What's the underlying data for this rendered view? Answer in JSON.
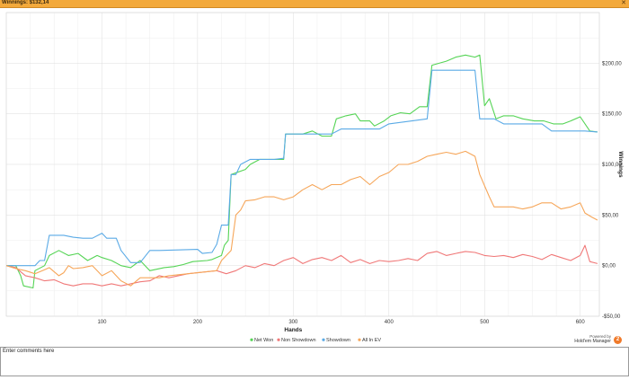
{
  "window": {
    "title": "Winnings: $132,14"
  },
  "chart_data": {
    "type": "line",
    "xlabel": "Hands",
    "ylabel": "Winnings",
    "xlim": [
      0,
      620
    ],
    "ylim": [
      -50,
      250
    ],
    "x_ticks": [
      100,
      200,
      300,
      400,
      500,
      600
    ],
    "x_tick_labels": [
      "100",
      "200",
      "300",
      "400",
      "500",
      "600"
    ],
    "y_ticks": [
      -50,
      0,
      50,
      100,
      150,
      200
    ],
    "y_tick_labels": [
      "-$50,00",
      "$0,00",
      "$50,00",
      "$100,00",
      "$150,00",
      "$200,00"
    ],
    "grid": true,
    "legend_position": "bottom-center",
    "series": [
      {
        "name": "Net Won",
        "color": "#55d455",
        "points": [
          [
            0,
            0
          ],
          [
            10,
            0
          ],
          [
            15,
            -10
          ],
          [
            18,
            -20
          ],
          [
            28,
            -22
          ],
          [
            30,
            -5
          ],
          [
            40,
            0
          ],
          [
            45,
            10
          ],
          [
            55,
            15
          ],
          [
            65,
            10
          ],
          [
            75,
            12
          ],
          [
            85,
            5
          ],
          [
            95,
            10
          ],
          [
            100,
            8
          ],
          [
            110,
            5
          ],
          [
            120,
            0
          ],
          [
            130,
            -2
          ],
          [
            140,
            5
          ],
          [
            150,
            -5
          ],
          [
            165,
            -2
          ],
          [
            175,
            -1
          ],
          [
            185,
            1
          ],
          [
            195,
            4
          ],
          [
            210,
            5
          ],
          [
            215,
            6
          ],
          [
            225,
            10
          ],
          [
            228,
            20
          ],
          [
            232,
            25
          ],
          [
            235,
            90
          ],
          [
            250,
            95
          ],
          [
            255,
            100
          ],
          [
            265,
            105
          ],
          [
            290,
            105
          ],
          [
            292,
            130
          ],
          [
            310,
            130
          ],
          [
            320,
            133
          ],
          [
            330,
            128
          ],
          [
            340,
            128
          ],
          [
            345,
            145
          ],
          [
            355,
            148
          ],
          [
            365,
            150
          ],
          [
            370,
            143
          ],
          [
            380,
            143
          ],
          [
            385,
            138
          ],
          [
            395,
            143
          ],
          [
            402,
            148
          ],
          [
            412,
            151
          ],
          [
            422,
            150
          ],
          [
            432,
            157
          ],
          [
            440,
            157
          ],
          [
            445,
            198
          ],
          [
            460,
            202
          ],
          [
            470,
            206
          ],
          [
            480,
            208
          ],
          [
            490,
            206
          ],
          [
            495,
            208
          ],
          [
            500,
            158
          ],
          [
            505,
            165
          ],
          [
            512,
            145
          ],
          [
            520,
            148
          ],
          [
            530,
            148
          ],
          [
            540,
            145
          ],
          [
            552,
            143
          ],
          [
            562,
            143
          ],
          [
            572,
            140
          ],
          [
            582,
            140
          ],
          [
            590,
            143
          ],
          [
            600,
            147
          ],
          [
            610,
            133
          ],
          [
            618,
            132
          ]
        ]
      },
      {
        "name": "Non Showdown",
        "color": "#f07878",
        "points": [
          [
            0,
            0
          ],
          [
            10,
            -2
          ],
          [
            20,
            -10
          ],
          [
            30,
            -12
          ],
          [
            40,
            -15
          ],
          [
            50,
            -14
          ],
          [
            60,
            -18
          ],
          [
            70,
            -20
          ],
          [
            80,
            -18
          ],
          [
            90,
            -18
          ],
          [
            100,
            -20
          ],
          [
            110,
            -18
          ],
          [
            120,
            -20
          ],
          [
            130,
            -18
          ],
          [
            140,
            -16
          ],
          [
            150,
            -15
          ],
          [
            160,
            -10
          ],
          [
            170,
            -12
          ],
          [
            180,
            -10
          ],
          [
            190,
            -8
          ],
          [
            200,
            -7
          ],
          [
            210,
            -6
          ],
          [
            220,
            -5
          ],
          [
            230,
            -8
          ],
          [
            240,
            -5
          ],
          [
            250,
            0
          ],
          [
            260,
            -2
          ],
          [
            270,
            2
          ],
          [
            280,
            0
          ],
          [
            290,
            5
          ],
          [
            300,
            8
          ],
          [
            310,
            2
          ],
          [
            320,
            6
          ],
          [
            330,
            8
          ],
          [
            340,
            5
          ],
          [
            350,
            10
          ],
          [
            360,
            3
          ],
          [
            370,
            6
          ],
          [
            380,
            2
          ],
          [
            390,
            5
          ],
          [
            400,
            4
          ],
          [
            410,
            5
          ],
          [
            420,
            7
          ],
          [
            430,
            5
          ],
          [
            440,
            12
          ],
          [
            450,
            14
          ],
          [
            460,
            10
          ],
          [
            470,
            12
          ],
          [
            480,
            14
          ],
          [
            490,
            13
          ],
          [
            500,
            10
          ],
          [
            510,
            9
          ],
          [
            520,
            10
          ],
          [
            530,
            8
          ],
          [
            540,
            11
          ],
          [
            550,
            9
          ],
          [
            560,
            6
          ],
          [
            570,
            11
          ],
          [
            580,
            8
          ],
          [
            590,
            5
          ],
          [
            600,
            10
          ],
          [
            605,
            20
          ],
          [
            610,
            4
          ],
          [
            618,
            2
          ]
        ]
      },
      {
        "name": "Showdown",
        "color": "#5aaae6",
        "points": [
          [
            0,
            0
          ],
          [
            30,
            0
          ],
          [
            35,
            5
          ],
          [
            40,
            5
          ],
          [
            45,
            30
          ],
          [
            60,
            30
          ],
          [
            70,
            28
          ],
          [
            80,
            27
          ],
          [
            90,
            27
          ],
          [
            100,
            32
          ],
          [
            105,
            27
          ],
          [
            115,
            27
          ],
          [
            120,
            15
          ],
          [
            130,
            3
          ],
          [
            140,
            3
          ],
          [
            150,
            15
          ],
          [
            160,
            15
          ],
          [
            200,
            16
          ],
          [
            205,
            12
          ],
          [
            215,
            13
          ],
          [
            220,
            21
          ],
          [
            225,
            40
          ],
          [
            232,
            40
          ],
          [
            235,
            90
          ],
          [
            240,
            90
          ],
          [
            245,
            100
          ],
          [
            255,
            105
          ],
          [
            280,
            105
          ],
          [
            290,
            106
          ],
          [
            292,
            130
          ],
          [
            310,
            130
          ],
          [
            340,
            130
          ],
          [
            350,
            135
          ],
          [
            390,
            135
          ],
          [
            400,
            140
          ],
          [
            440,
            145
          ],
          [
            445,
            193
          ],
          [
            465,
            193
          ],
          [
            490,
            193
          ],
          [
            495,
            145
          ],
          [
            510,
            145
          ],
          [
            520,
            140
          ],
          [
            540,
            140
          ],
          [
            560,
            140
          ],
          [
            570,
            133
          ],
          [
            590,
            133
          ],
          [
            605,
            133
          ],
          [
            618,
            132
          ]
        ]
      },
      {
        "name": "All In EV",
        "color": "#f6a659",
        "points": [
          [
            0,
            0
          ],
          [
            10,
            -3
          ],
          [
            20,
            -5
          ],
          [
            30,
            -8
          ],
          [
            40,
            -4
          ],
          [
            45,
            -2
          ],
          [
            50,
            -6
          ],
          [
            55,
            -10
          ],
          [
            60,
            -7
          ],
          [
            65,
            0
          ],
          [
            70,
            -3
          ],
          [
            80,
            -2
          ],
          [
            90,
            0
          ],
          [
            100,
            -10
          ],
          [
            110,
            -5
          ],
          [
            120,
            -15
          ],
          [
            130,
            -20
          ],
          [
            140,
            -12
          ],
          [
            150,
            -12
          ],
          [
            160,
            -12
          ],
          [
            170,
            -10
          ],
          [
            180,
            -9
          ],
          [
            190,
            -8
          ],
          [
            200,
            -7
          ],
          [
            210,
            -6
          ],
          [
            220,
            -5
          ],
          [
            225,
            5
          ],
          [
            235,
            15
          ],
          [
            240,
            50
          ],
          [
            245,
            55
          ],
          [
            250,
            64
          ],
          [
            260,
            65
          ],
          [
            270,
            68
          ],
          [
            280,
            68
          ],
          [
            290,
            65
          ],
          [
            300,
            68
          ],
          [
            310,
            75
          ],
          [
            320,
            80
          ],
          [
            330,
            75
          ],
          [
            340,
            80
          ],
          [
            350,
            80
          ],
          [
            360,
            85
          ],
          [
            370,
            88
          ],
          [
            380,
            80
          ],
          [
            390,
            88
          ],
          [
            400,
            92
          ],
          [
            410,
            100
          ],
          [
            420,
            100
          ],
          [
            430,
            103
          ],
          [
            440,
            108
          ],
          [
            450,
            110
          ],
          [
            460,
            112
          ],
          [
            470,
            110
          ],
          [
            480,
            113
          ],
          [
            490,
            108
          ],
          [
            495,
            90
          ],
          [
            505,
            68
          ],
          [
            510,
            58
          ],
          [
            520,
            58
          ],
          [
            530,
            58
          ],
          [
            540,
            56
          ],
          [
            550,
            58
          ],
          [
            560,
            62
          ],
          [
            570,
            62
          ],
          [
            580,
            56
          ],
          [
            590,
            58
          ],
          [
            600,
            62
          ],
          [
            605,
            52
          ],
          [
            612,
            48
          ],
          [
            618,
            45
          ]
        ]
      }
    ]
  },
  "branding": {
    "powered_by": "Powered by",
    "product_name": "Hold'em Manager",
    "logo_glyph": "2"
  },
  "comments": {
    "placeholder": "Enter comments here",
    "value": ""
  }
}
